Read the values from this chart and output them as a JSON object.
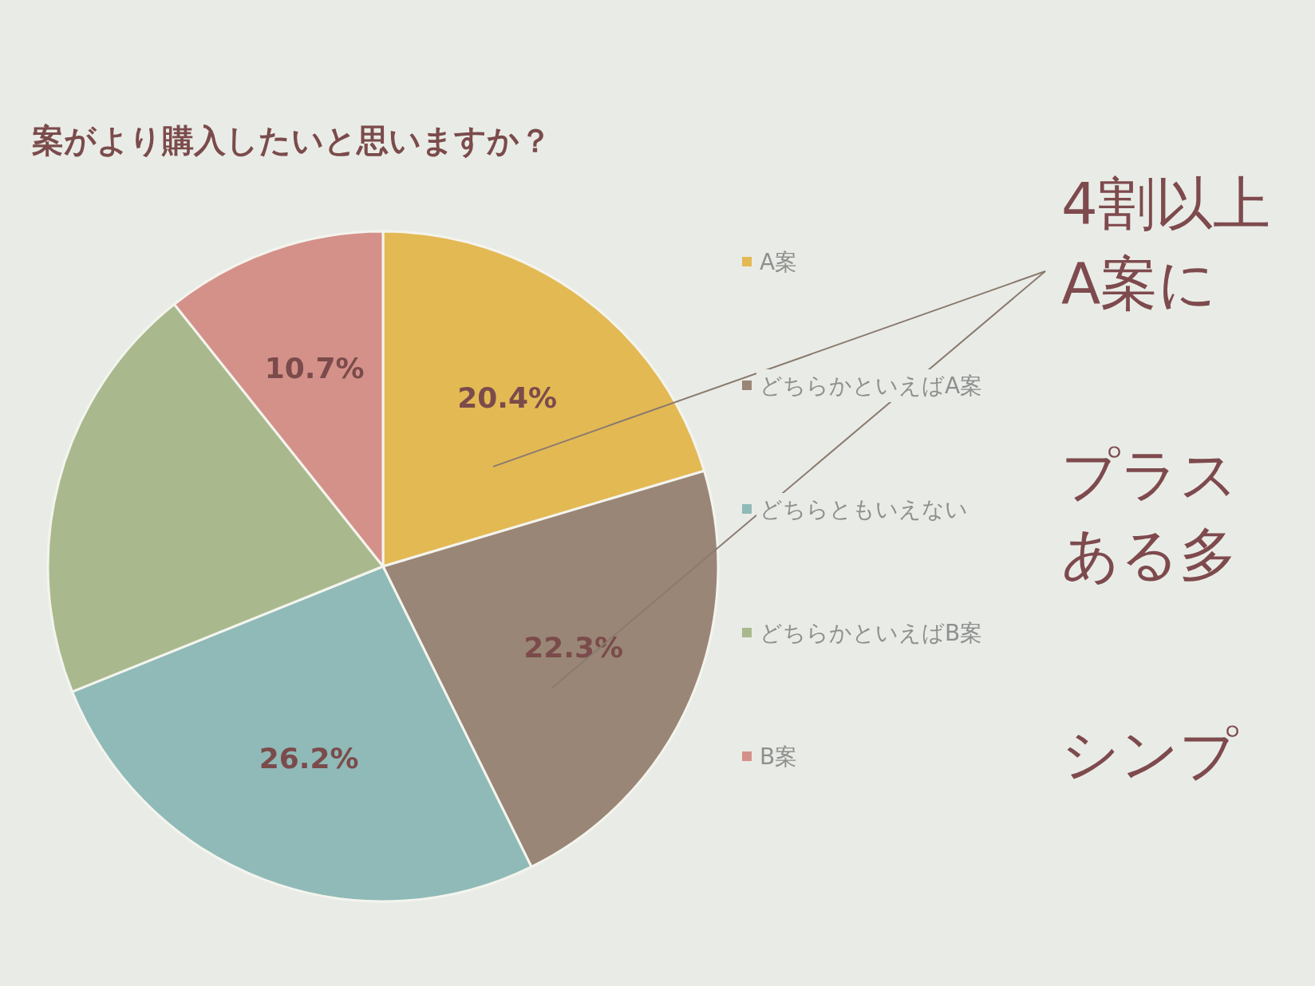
{
  "chart_data": {
    "type": "pie",
    "title": "案がより購入したいと思いますか？",
    "categories": [
      "A案",
      "どちらかといえばA案",
      "どちらともいえない",
      "どちらかといえばB案",
      "B案"
    ],
    "values": [
      20.4,
      22.3,
      26.2,
      20.4,
      10.7
    ],
    "colors": [
      "#e3b954",
      "#9a8676",
      "#8fbab7",
      "#a9b98d",
      "#d4918a"
    ],
    "value_labels": [
      "20.4%",
      "22.3%",
      "26.2%",
      null,
      "10.7%"
    ],
    "legend": "right",
    "annotations": [
      "4割以上",
      "A案に",
      "プラス",
      "ある多",
      "シンプ"
    ]
  }
}
